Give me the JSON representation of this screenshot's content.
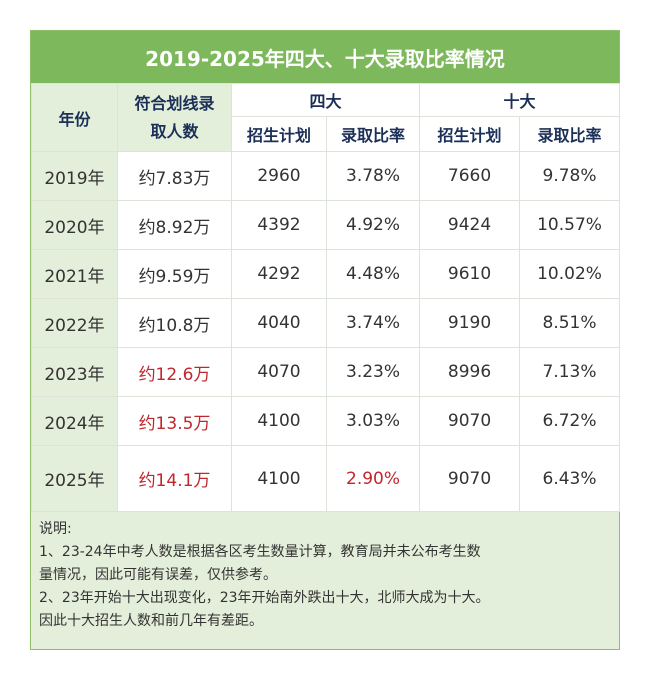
{
  "title": "2019-2025年四大、十大录取比率情况",
  "table": {
    "header": {
      "year": "年份",
      "admitted": "符合划线录取人数",
      "group1": "四大",
      "group2": "十大",
      "sub": [
        "招生计划",
        "录取比率",
        "招生计划",
        "录取比率"
      ]
    },
    "rows": [
      [
        "2019年",
        "约7.83万",
        "2960",
        "3.78%",
        "7660",
        "9.78%"
      ],
      [
        "2020年",
        "约8.92万",
        "4392",
        "4.92%",
        "9424",
        "10.57%"
      ],
      [
        "2021年",
        "约9.59万",
        "4292",
        "4.48%",
        "9610",
        "10.02%"
      ],
      [
        "2022年",
        "约10.8万",
        "4040",
        "3.74%",
        "9190",
        "8.51%"
      ],
      [
        "2023年",
        "约12.6万",
        "4070",
        "3.23%",
        "8996",
        "7.13%"
      ],
      [
        "2024年",
        "约13.5万",
        "4100",
        "3.03%",
        "9070",
        "6.72%"
      ],
      [
        "2025年",
        "约14.1万",
        "4100",
        "2.90%",
        "9070",
        "6.43%"
      ]
    ]
  },
  "notes": [
    "说明:",
    "1、23-24年中考人数是根据各区考生数量计算，教育局并未公布考生数",
    "量情况，因此可能有误差，仅供参考。",
    "2、23年开始十大出现变化，23年开始南外跌出十大，北师大成为十大。",
    "因此十大招生人数和前几年有差距。"
  ]
}
